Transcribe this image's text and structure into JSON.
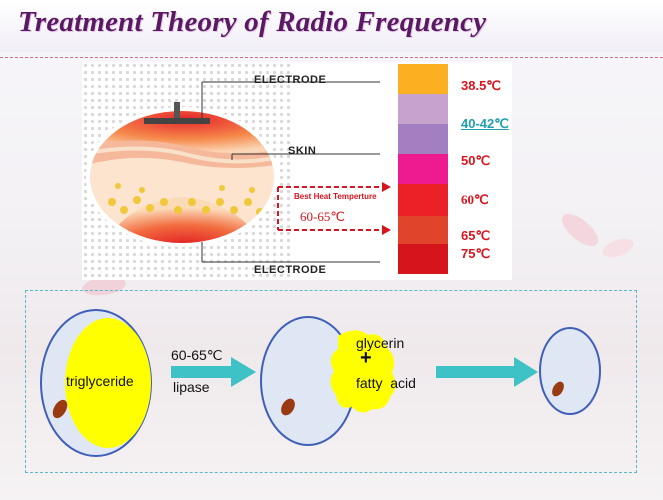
{
  "title": "Treatment Theory of Radio Frequency",
  "top_diagram": {
    "electrode_top": "ELECTRODE",
    "skin": "SKIN",
    "electrode_bottom": "ELECTRODE",
    "best_heat_label": "Best Heat Temperture",
    "best_heat_range": "60-65℃"
  },
  "temperature_scale": [
    {
      "label": "38.5℃",
      "color": "#fbb021"
    },
    {
      "label": "40-42℃",
      "color": "#c8a2cf"
    },
    {
      "label": "",
      "color": "#a37fc1"
    },
    {
      "label": "50℃",
      "color": "#ee1a8f"
    },
    {
      "label": "60℃",
      "color": "#ec2127"
    },
    {
      "label": "65℃",
      "color": "#e0452c"
    },
    {
      "label": "75℃",
      "color": "#d6141c"
    }
  ],
  "process": {
    "cell1_label": "triglyceride",
    "arrow1_top": "60-65℃",
    "arrow1_bottom": "lipase",
    "cell2_top": "glycerin",
    "cell2_plus": "+",
    "cell2_bottom": "fatty  acid"
  }
}
